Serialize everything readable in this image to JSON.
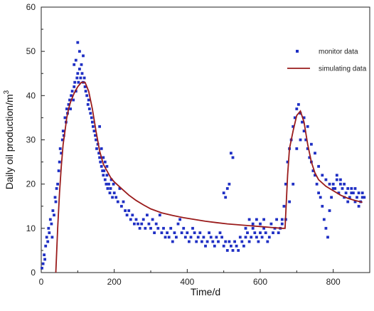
{
  "chart_data": {
    "type": "scatter",
    "xlabel": "Time/d",
    "ylabel": "Daily oil production/m",
    "ylabel_superscript": "3",
    "xlim": [
      0,
      900
    ],
    "ylim": [
      0,
      60
    ],
    "xticks": [
      0,
      200,
      400,
      600,
      800
    ],
    "yticks": [
      0,
      10,
      20,
      30,
      40,
      50,
      60
    ],
    "grid": false,
    "legend_position": "top-right",
    "series": [
      {
        "name": "monitor data",
        "kind": "scatter",
        "color": "#1f2fc4",
        "points": [
          [
            2,
            1
          ],
          [
            5,
            2
          ],
          [
            8,
            4
          ],
          [
            10,
            3
          ],
          [
            12,
            6
          ],
          [
            15,
            8
          ],
          [
            18,
            7
          ],
          [
            20,
            10
          ],
          [
            22,
            9
          ],
          [
            25,
            12
          ],
          [
            28,
            11
          ],
          [
            30,
            8
          ],
          [
            32,
            14
          ],
          [
            35,
            13
          ],
          [
            38,
            17
          ],
          [
            40,
            16
          ],
          [
            42,
            19
          ],
          [
            45,
            20
          ],
          [
            48,
            23
          ],
          [
            50,
            25
          ],
          [
            52,
            28
          ],
          [
            55,
            27
          ],
          [
            58,
            30
          ],
          [
            60,
            32
          ],
          [
            62,
            31
          ],
          [
            65,
            35
          ],
          [
            68,
            34
          ],
          [
            70,
            37
          ],
          [
            72,
            36
          ],
          [
            75,
            38
          ],
          [
            78,
            39
          ],
          [
            80,
            37
          ],
          [
            82,
            40
          ],
          [
            85,
            41
          ],
          [
            88,
            39
          ],
          [
            90,
            42
          ],
          [
            92,
            43
          ],
          [
            95,
            41
          ],
          [
            98,
            44
          ],
          [
            100,
            45
          ],
          [
            102,
            43
          ],
          [
            105,
            46
          ],
          [
            108,
            44
          ],
          [
            110,
            47
          ],
          [
            112,
            45
          ],
          [
            115,
            43
          ],
          [
            118,
            44
          ],
          [
            120,
            42
          ],
          [
            122,
            41
          ],
          [
            125,
            40
          ],
          [
            128,
            38
          ],
          [
            130,
            39
          ],
          [
            132,
            37
          ],
          [
            135,
            36
          ],
          [
            138,
            35
          ],
          [
            140,
            34
          ],
          [
            142,
            33
          ],
          [
            145,
            32
          ],
          [
            148,
            31
          ],
          [
            150,
            30
          ],
          [
            152,
            28
          ],
          [
            155,
            29
          ],
          [
            158,
            27
          ],
          [
            160,
            26
          ],
          [
            162,
            25
          ],
          [
            165,
            24
          ],
          [
            168,
            23
          ],
          [
            170,
            22
          ],
          [
            172,
            23
          ],
          [
            175,
            21
          ],
          [
            178,
            20
          ],
          [
            180,
            22
          ],
          [
            182,
            19
          ],
          [
            185,
            20
          ],
          [
            188,
            18
          ],
          [
            190,
            19
          ],
          [
            192,
            21
          ],
          [
            195,
            17
          ],
          [
            198,
            20
          ],
          [
            200,
            18
          ],
          [
            205,
            17
          ],
          [
            210,
            16
          ],
          [
            215,
            19
          ],
          [
            220,
            15
          ],
          [
            225,
            16
          ],
          [
            230,
            14
          ],
          [
            235,
            13
          ],
          [
            240,
            14
          ],
          [
            245,
            12
          ],
          [
            250,
            13
          ],
          [
            255,
            11
          ],
          [
            260,
            12
          ],
          [
            265,
            11
          ],
          [
            270,
            10
          ],
          [
            275,
            11
          ],
          [
            280,
            12
          ],
          [
            285,
            10
          ],
          [
            290,
            13
          ],
          [
            295,
            11
          ],
          [
            300,
            10
          ],
          [
            305,
            12
          ],
          [
            310,
            9
          ],
          [
            315,
            11
          ],
          [
            320,
            10
          ],
          [
            325,
            13
          ],
          [
            330,
            9
          ],
          [
            335,
            10
          ],
          [
            340,
            8
          ],
          [
            345,
            9
          ],
          [
            350,
            8
          ],
          [
            355,
            10
          ],
          [
            360,
            7
          ],
          [
            365,
            9
          ],
          [
            370,
            8
          ],
          [
            375,
            11
          ],
          [
            380,
            12
          ],
          [
            385,
            9
          ],
          [
            390,
            10
          ],
          [
            395,
            8
          ],
          [
            400,
            9
          ],
          [
            405,
            7
          ],
          [
            410,
            8
          ],
          [
            415,
            10
          ],
          [
            420,
            9
          ],
          [
            425,
            7
          ],
          [
            430,
            8
          ],
          [
            435,
            9
          ],
          [
            440,
            7
          ],
          [
            445,
            8
          ],
          [
            450,
            6
          ],
          [
            455,
            7
          ],
          [
            460,
            9
          ],
          [
            465,
            8
          ],
          [
            470,
            7
          ],
          [
            475,
            6
          ],
          [
            480,
            8
          ],
          [
            485,
            7
          ],
          [
            490,
            9
          ],
          [
            495,
            8
          ],
          [
            500,
            6
          ],
          [
            505,
            7
          ],
          [
            510,
            5
          ],
          [
            515,
            7
          ],
          [
            520,
            6
          ],
          [
            525,
            5
          ],
          [
            530,
            7
          ],
          [
            535,
            6
          ],
          [
            540,
            5
          ],
          [
            545,
            8
          ],
          [
            550,
            7
          ],
          [
            555,
            6
          ],
          [
            560,
            8
          ],
          [
            565,
            9
          ],
          [
            570,
            7
          ],
          [
            575,
            8
          ],
          [
            580,
            10
          ],
          [
            585,
            9
          ],
          [
            590,
            8
          ],
          [
            595,
            7
          ],
          [
            600,
            9
          ],
          [
            605,
            8
          ],
          [
            610,
            10
          ],
          [
            615,
            9
          ],
          [
            620,
            7
          ],
          [
            625,
            8
          ],
          [
            630,
            11
          ],
          [
            635,
            9
          ],
          [
            640,
            10
          ],
          [
            645,
            12
          ],
          [
            650,
            9
          ],
          [
            655,
            10
          ],
          [
            660,
            12
          ],
          [
            665,
            15
          ],
          [
            670,
            20
          ],
          [
            675,
            25
          ],
          [
            680,
            28
          ],
          [
            685,
            30
          ],
          [
            690,
            33
          ],
          [
            695,
            35
          ],
          [
            700,
            37
          ],
          [
            705,
            38
          ],
          [
            710,
            36
          ],
          [
            715,
            34
          ],
          [
            720,
            32
          ],
          [
            725,
            30
          ],
          [
            730,
            28
          ],
          [
            735,
            26
          ],
          [
            740,
            25
          ],
          [
            745,
            23
          ],
          [
            750,
            22
          ],
          [
            755,
            20
          ],
          [
            760,
            18
          ],
          [
            765,
            17
          ],
          [
            770,
            15
          ],
          [
            775,
            12
          ],
          [
            780,
            10
          ],
          [
            785,
            8
          ],
          [
            790,
            14
          ],
          [
            795,
            17
          ],
          [
            800,
            20
          ],
          [
            805,
            19
          ],
          [
            810,
            21
          ],
          [
            815,
            18
          ],
          [
            820,
            20
          ],
          [
            825,
            19
          ],
          [
            830,
            17
          ],
          [
            835,
            18
          ],
          [
            840,
            16
          ],
          [
            845,
            17
          ],
          [
            850,
            19
          ],
          [
            855,
            18
          ],
          [
            860,
            16
          ],
          [
            865,
            17
          ],
          [
            870,
            15
          ],
          [
            875,
            16
          ],
          [
            880,
            18
          ],
          [
            885,
            17
          ],
          [
            100,
            52
          ],
          [
            105,
            50
          ],
          [
            95,
            48
          ],
          [
            90,
            47
          ],
          [
            115,
            49
          ],
          [
            160,
            33
          ],
          [
            165,
            28
          ],
          [
            170,
            26
          ],
          [
            175,
            25
          ],
          [
            180,
            24
          ],
          [
            500,
            18
          ],
          [
            505,
            17
          ],
          [
            510,
            19
          ],
          [
            515,
            20
          ],
          [
            520,
            27
          ],
          [
            525,
            26
          ],
          [
            560,
            10
          ],
          [
            570,
            12
          ],
          [
            580,
            11
          ],
          [
            590,
            12
          ],
          [
            600,
            11
          ],
          [
            610,
            12
          ],
          [
            660,
            11
          ],
          [
            670,
            12
          ],
          [
            680,
            16
          ],
          [
            690,
            20
          ],
          [
            700,
            28
          ],
          [
            710,
            30
          ],
          [
            720,
            35
          ],
          [
            730,
            33
          ],
          [
            740,
            29
          ],
          [
            750,
            27
          ],
          [
            760,
            24
          ],
          [
            770,
            22
          ],
          [
            780,
            21
          ],
          [
            790,
            20
          ],
          [
            800,
            19
          ],
          [
            810,
            22
          ],
          [
            820,
            21
          ],
          [
            830,
            20
          ],
          [
            840,
            19
          ],
          [
            850,
            18
          ],
          [
            860,
            19
          ],
          [
            870,
            18
          ],
          [
            880,
            17
          ]
        ]
      },
      {
        "name": "simulating data",
        "kind": "line",
        "color": "#9a1b1b",
        "points": [
          [
            40,
            0
          ],
          [
            45,
            10
          ],
          [
            50,
            18
          ],
          [
            55,
            24
          ],
          [
            60,
            29
          ],
          [
            65,
            32
          ],
          [
            70,
            35
          ],
          [
            75,
            37
          ],
          [
            80,
            38.5
          ],
          [
            90,
            40.5
          ],
          [
            100,
            42
          ],
          [
            110,
            43
          ],
          [
            120,
            43
          ],
          [
            130,
            41
          ],
          [
            140,
            37
          ],
          [
            150,
            32
          ],
          [
            160,
            27.5
          ],
          [
            170,
            24.5
          ],
          [
            180,
            23
          ],
          [
            190,
            21.5
          ],
          [
            200,
            20.5
          ],
          [
            220,
            19
          ],
          [
            240,
            17.5
          ],
          [
            260,
            16.3
          ],
          [
            280,
            15.3
          ],
          [
            300,
            14.4
          ],
          [
            330,
            13.5
          ],
          [
            360,
            12.9
          ],
          [
            390,
            12.4
          ],
          [
            420,
            12
          ],
          [
            450,
            11.6
          ],
          [
            480,
            11.3
          ],
          [
            510,
            11
          ],
          [
            540,
            10.8
          ],
          [
            570,
            10.6
          ],
          [
            600,
            10.4
          ],
          [
            630,
            10.2
          ],
          [
            660,
            10
          ],
          [
            668,
            10
          ],
          [
            675,
            22
          ],
          [
            680,
            28
          ],
          [
            690,
            32
          ],
          [
            700,
            35.5
          ],
          [
            710,
            36.5
          ],
          [
            720,
            34
          ],
          [
            730,
            29
          ],
          [
            740,
            25
          ],
          [
            750,
            22.5
          ],
          [
            760,
            21
          ],
          [
            780,
            19.5
          ],
          [
            800,
            18.5
          ],
          [
            820,
            17.5
          ],
          [
            840,
            16.8
          ],
          [
            860,
            16.3
          ],
          [
            880,
            15.9
          ]
        ]
      }
    ]
  }
}
